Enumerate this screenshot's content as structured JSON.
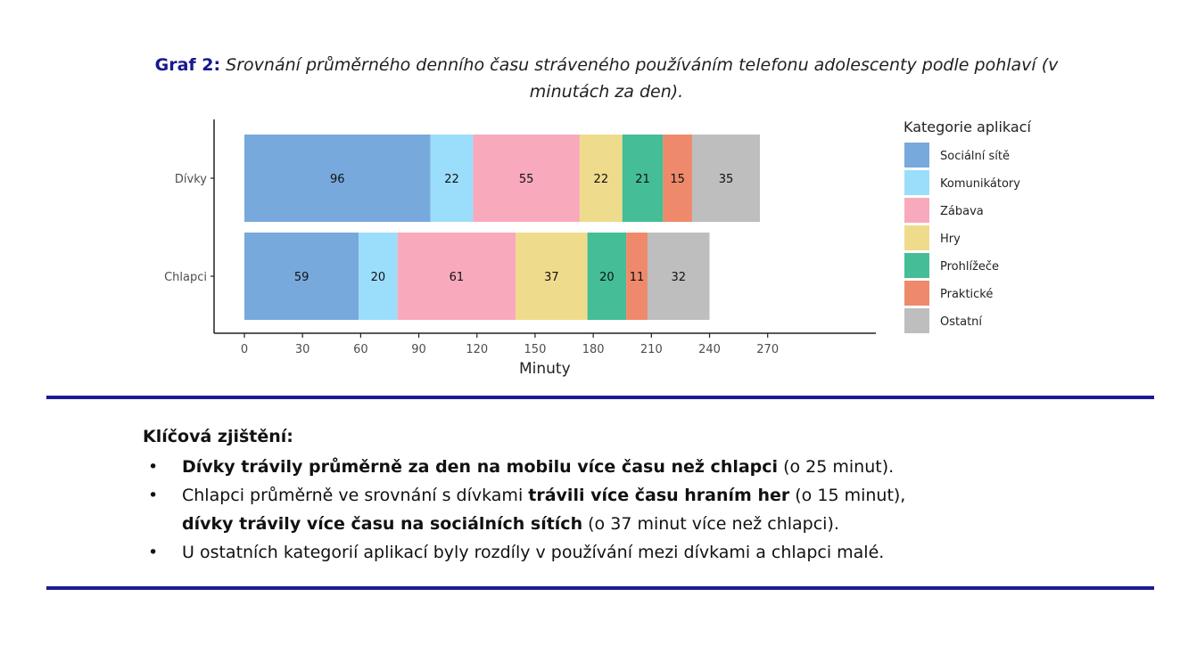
{
  "title": {
    "lead": "Graf 2:",
    "text": "Srovnání průměrného denního času stráveného používáním telefonu adolescenty podle pohlaví (v minutách za den)."
  },
  "chart_data": {
    "type": "bar",
    "orientation": "horizontal",
    "stacked": true,
    "categories": [
      "Dívky",
      "Chlapci"
    ],
    "series": [
      {
        "name": "Sociální sítě",
        "values": [
          96,
          59
        ],
        "color": "#77a9dc"
      },
      {
        "name": "Komunikátory",
        "values": [
          22,
          20
        ],
        "color": "#9bdefc"
      },
      {
        "name": "Zábava",
        "values": [
          55,
          61
        ],
        "color": "#f8a9bc"
      },
      {
        "name": "Hry",
        "values": [
          22,
          37
        ],
        "color": "#efdb8c"
      },
      {
        "name": "Prohlížeče",
        "values": [
          21,
          20
        ],
        "color": "#45bd97"
      },
      {
        "name": "Praktické",
        "values": [
          15,
          11
        ],
        "color": "#ee8a6b"
      },
      {
        "name": "Ostatní",
        "values": [
          35,
          32
        ],
        "color": "#bebebe"
      }
    ],
    "xlabel": "Minuty",
    "ylabel": "",
    "xlim": [
      0,
      280
    ],
    "xticks": [
      0,
      30,
      60,
      90,
      120,
      150,
      180,
      210,
      240,
      270
    ],
    "legend_title": "Kategorie aplikací",
    "legend_position": "right",
    "grid": false
  },
  "findings": {
    "heading": "Klíčová zjištění:",
    "b1_bold": "Dívky trávily průměrně za den na mobilu více času než chlapci",
    "b1_rest": " (o 25 minut).",
    "b2_a": "Chlapci průměrně ve srovnání s dívkami ",
    "b2_bold1": "trávili více času hraním her",
    "b2_b": " (o 15 minut),",
    "b2_bold2": "dívky trávily více času na sociálních sítích",
    "b2_c": " (o 37 minut více než chlapci).",
    "b3": "U ostatních kategorií aplikací byly rozdíly v používání mezi dívkami a chlapci malé."
  },
  "colors": {
    "accent_rule": "#1a1a96",
    "title_lead": "#17178f"
  }
}
